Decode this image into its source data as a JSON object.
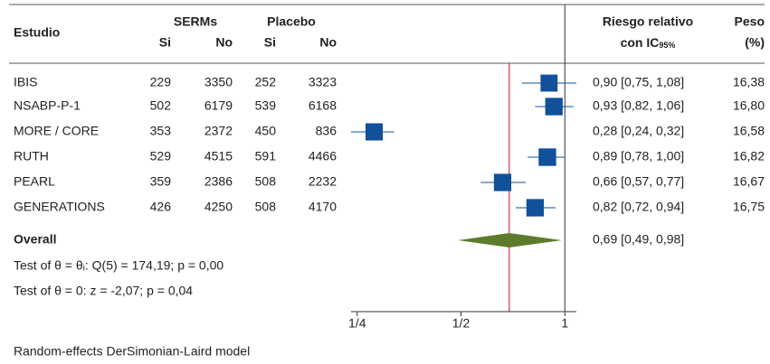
{
  "chart_data": {
    "type": "forest",
    "headers": {
      "study": "Estudio",
      "serms": "SERMs",
      "placebo": "Placebo",
      "sub": [
        "Si",
        "No",
        "Si",
        "No"
      ],
      "rr": "Riesgo relativo",
      "rr_ci": "con IC",
      "rr_ci_sub": "95%",
      "weight": "Peso",
      "weight_unit": "(%)"
    },
    "rows": [
      {
        "study": "IBIS",
        "serms": [
          229,
          3350
        ],
        "placebo": [
          252,
          3323
        ],
        "rr": 0.9,
        "ci": [
          0.75,
          1.08
        ],
        "rr_label": "0,90 [0,75, 1,08]",
        "weight": 16.38,
        "weight_label": "16,38"
      },
      {
        "study": "NSABP-P-1",
        "serms": [
          502,
          6179
        ],
        "placebo": [
          539,
          6168
        ],
        "rr": 0.93,
        "ci": [
          0.82,
          1.06
        ],
        "rr_label": "0,93 [0,82, 1,06]",
        "weight": 16.8,
        "weight_label": "16,80"
      },
      {
        "study": "MORE / CORE",
        "serms": [
          353,
          2372
        ],
        "placebo": [
          450,
          836
        ],
        "rr": 0.28,
        "ci": [
          0.24,
          0.32
        ],
        "rr_label": "0,28 [0,24, 0,32]",
        "weight": 16.58,
        "weight_label": "16,58"
      },
      {
        "study": "RUTH",
        "serms": [
          529,
          4515
        ],
        "placebo": [
          591,
          4466
        ],
        "rr": 0.89,
        "ci": [
          0.78,
          1.0
        ],
        "rr_label": "0,89 [0,78, 1,00]",
        "weight": 16.82,
        "weight_label": "16,82"
      },
      {
        "study": "PEARL",
        "serms": [
          359,
          2386
        ],
        "placebo": [
          508,
          2232
        ],
        "rr": 0.66,
        "ci": [
          0.57,
          0.77
        ],
        "rr_label": "0,66 [0,57, 0,77]",
        "weight": 16.67,
        "weight_label": "16,67"
      },
      {
        "study": "GENERATIONS",
        "serms": [
          426,
          4250
        ],
        "placebo": [
          508,
          4170
        ],
        "rr": 0.82,
        "ci": [
          0.72,
          0.94
        ],
        "rr_label": "0,82 [0,72, 0,94]",
        "weight": 16.75,
        "weight_label": "16,75"
      }
    ],
    "overall": {
      "label": "Overall",
      "rr": 0.69,
      "ci": [
        0.49,
        0.98
      ],
      "rr_label": "0,69 [0,49, 0,98]"
    },
    "tests": [
      "Test of θ = θᵢ: Q(5) = 174,19; p = 0,00",
      "Test of θ = 0: z = -2,07; p = 0,04"
    ],
    "footnote": "Random-effects DerSimonian-Laird model",
    "log_scale": true,
    "xlim": [
      0.24,
      1.08
    ],
    "xticks": [
      {
        "value": 0.25,
        "label": "1/4"
      },
      {
        "value": 0.5,
        "label": "1/2"
      },
      {
        "value": 1,
        "label": "1"
      }
    ],
    "null_line": 1,
    "square_color": "#11519a",
    "diamond_color": "#5e7b2c",
    "overall_line_color": "#c8102e"
  }
}
